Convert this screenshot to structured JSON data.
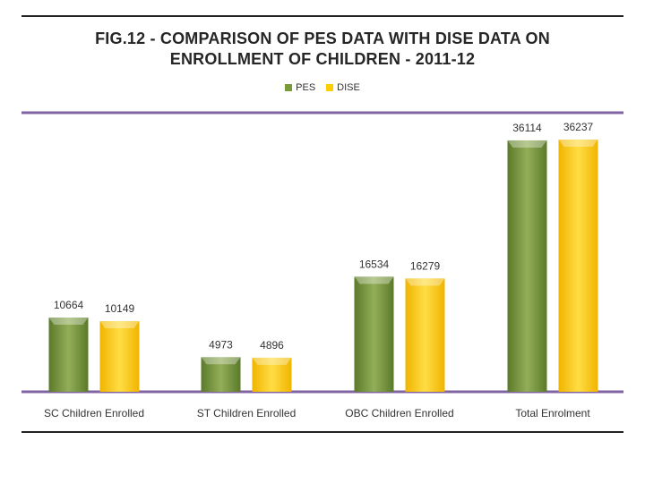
{
  "title_line1": "FIG.12 - COMPARISON OF PES DATA WITH DISE DATA ON",
  "title_line2": "ENROLLMENT OF CHILDREN - 2011-12",
  "colors": {
    "pes_light": "#93ae58",
    "pes_dark": "#5b7a2a",
    "dise_light": "#ffdd44",
    "dise_dark": "#f0b400",
    "frame": "#8064a2"
  },
  "chart_data": {
    "type": "bar",
    "title": "FIG.12 - COMPARISON OF PES DATA WITH DISE DATA ON ENROLLMENT OF CHILDREN - 2011-12",
    "categories": [
      "SC Children Enrolled",
      "ST Children Enrolled",
      "OBC Children Enrolled",
      "Total Enrolment"
    ],
    "series": [
      {
        "name": "PES",
        "values": [
          10664,
          4973,
          16534,
          36114
        ]
      },
      {
        "name": "DISE",
        "values": [
          10149,
          4896,
          16279,
          36237
        ]
      }
    ],
    "legend": "top-center",
    "xlabel": "",
    "ylabel": "",
    "ylim": [
      0,
      36237
    ]
  }
}
